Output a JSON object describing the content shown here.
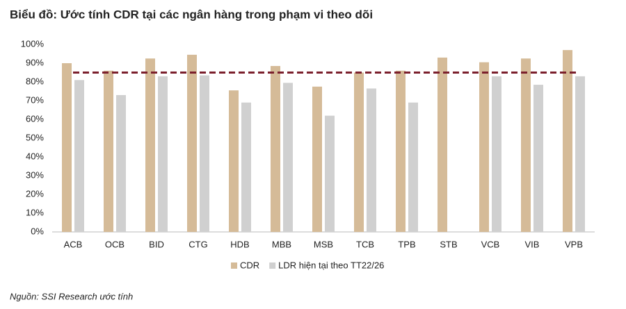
{
  "chart_data": {
    "type": "bar",
    "title": "Biểu đồ: Ước tính CDR tại các ngân hàng trong phạm vi theo dõi",
    "source": "Nguồn: SSI Research ước tính",
    "categories": [
      "ACB",
      "OCB",
      "BID",
      "CTG",
      "HDB",
      "MBB",
      "MSB",
      "TCB",
      "TPB",
      "STB",
      "VCB",
      "VIB",
      "VPB"
    ],
    "series": [
      {
        "name": "CDR",
        "color": "#d5bb98",
        "values": [
          90,
          86,
          92.5,
          94.5,
          75.5,
          88.5,
          77.5,
          85,
          86,
          93,
          90.5,
          92.5,
          97
        ]
      },
      {
        "name": "LDR hiện tại theo TT22/26",
        "color": "#d0d0d0",
        "values": [
          81,
          73,
          83,
          83.5,
          69,
          79.5,
          62,
          76.5,
          69,
          null,
          83,
          78.5,
          83
        ]
      }
    ],
    "reference_line": {
      "value": 85,
      "color": "#7b1f2c"
    },
    "ylim": [
      0,
      100
    ],
    "yticks": [
      {
        "value": 0,
        "label": "0%"
      },
      {
        "value": 10,
        "label": "10%"
      },
      {
        "value": 20,
        "label": "20%"
      },
      {
        "value": 30,
        "label": "30%"
      },
      {
        "value": 40,
        "label": "40%"
      },
      {
        "value": 50,
        "label": "50%"
      },
      {
        "value": 60,
        "label": "60%"
      },
      {
        "value": 70,
        "label": "70%"
      },
      {
        "value": 80,
        "label": "80%"
      },
      {
        "value": 90,
        "label": "90%"
      },
      {
        "value": 100,
        "label": "100%"
      }
    ],
    "grid": false
  }
}
